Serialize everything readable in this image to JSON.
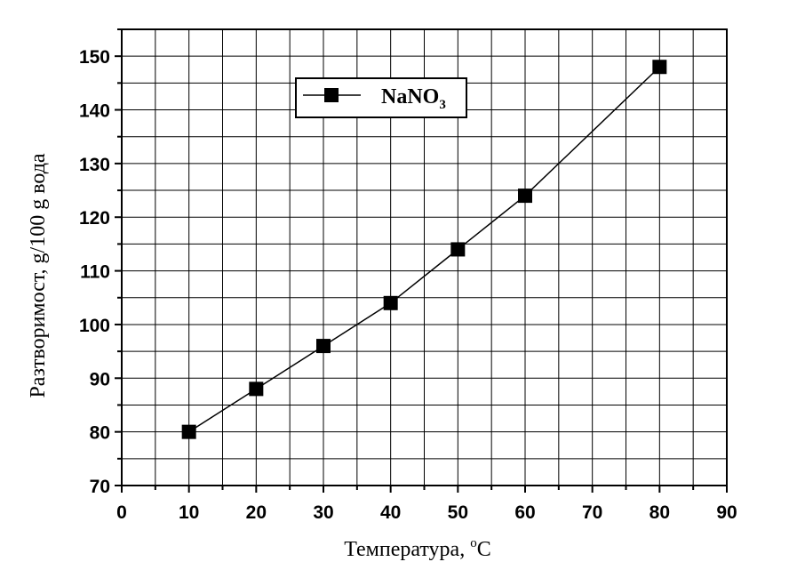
{
  "chart_data": {
    "type": "line",
    "x": [
      10,
      20,
      30,
      40,
      50,
      60,
      80
    ],
    "series": [
      {
        "name": "NaNO3",
        "name_main": "NaNO",
        "name_sub": "3",
        "values": [
          80,
          88,
          96,
          104,
          114,
          124,
          148
        ]
      }
    ],
    "xlabel": "Температура, ",
    "xlabel_sup": "o",
    "xlabel_unit": "C",
    "ylabel": "Разтворимост, g/100 g  вода",
    "xlim": [
      0,
      90
    ],
    "ylim": [
      70,
      155
    ],
    "xticks": [
      "0",
      "10",
      "20",
      "30",
      "40",
      "50",
      "60",
      "70",
      "80",
      "90"
    ],
    "yticks": [
      "70",
      "80",
      "90",
      "100",
      "110",
      "120",
      "130",
      "140",
      "150"
    ],
    "grid": true,
    "legend_position": "top-left",
    "marker": "square",
    "line_color": "#000000",
    "marker_color": "#000000"
  }
}
